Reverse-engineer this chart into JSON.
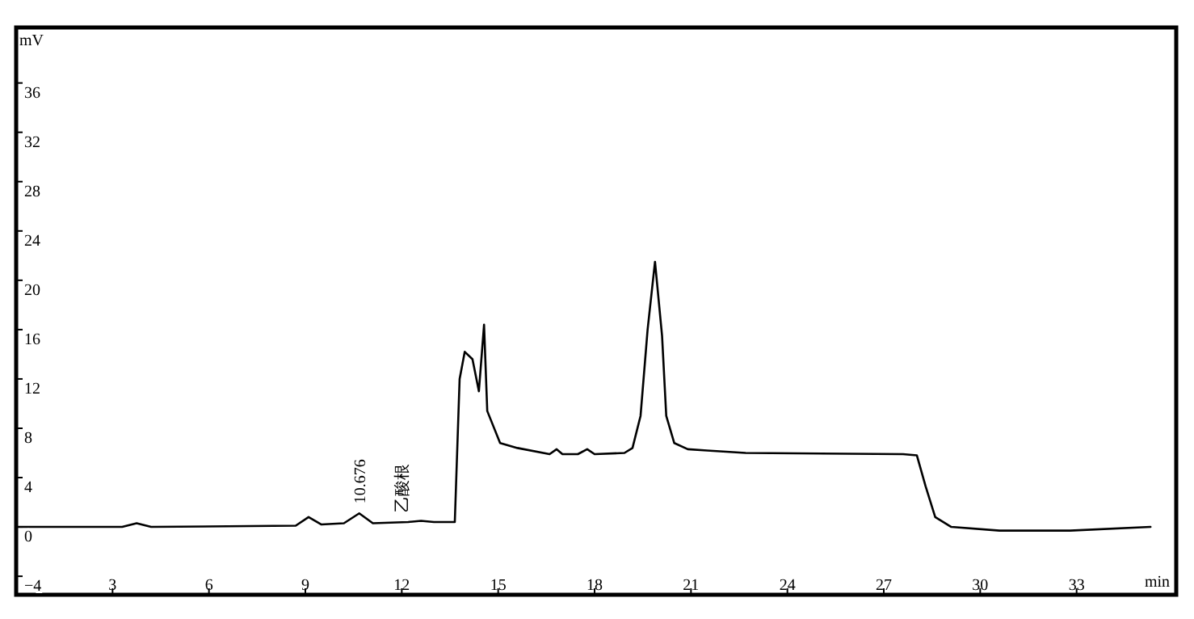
{
  "chart_data": {
    "type": "line",
    "xlabel": "min",
    "ylabel": "mV",
    "xlim": [
      0,
      36.1
    ],
    "ylim": [
      -5.5,
      40.5
    ],
    "xticks": [
      3,
      6,
      9,
      12,
      15,
      18,
      21,
      24,
      27,
      30,
      33
    ],
    "yticks": [
      -4,
      0,
      4,
      8,
      12,
      16,
      20,
      24,
      28,
      32,
      36
    ],
    "x": [
      0,
      3.3,
      3.75,
      4.2,
      8.7,
      9.1,
      9.5,
      10.2,
      10.676,
      11.1,
      12.2,
      12.6,
      13.0,
      13.65,
      13.8,
      13.96,
      14.2,
      14.4,
      14.56,
      14.66,
      15.06,
      15.6,
      16.6,
      16.82,
      17.0,
      17.48,
      17.77,
      18.0,
      18.93,
      19.18,
      19.43,
      19.65,
      19.88,
      20.1,
      20.23,
      20.48,
      20.9,
      21.5,
      22.7,
      27.6,
      28.03,
      28.3,
      28.6,
      29.1,
      30.6,
      32.8,
      35.3
    ],
    "series": [
      {
        "color": "#000000",
        "values": [
          0,
          0,
          0.3,
          0,
          0.1,
          0.8,
          0.2,
          0.3,
          1.1,
          0.3,
          0.4,
          0.5,
          0.4,
          0.4,
          12.0,
          14.2,
          13.6,
          11.0,
          16.4,
          9.4,
          6.8,
          6.4,
          5.9,
          6.3,
          5.9,
          5.9,
          6.3,
          5.9,
          6.0,
          6.4,
          9.0,
          16.0,
          21.5,
          15.5,
          9.0,
          6.8,
          6.3,
          6.2,
          6.0,
          5.9,
          5.8,
          3.3,
          0.8,
          0,
          -0.3,
          -0.3,
          0
        ]
      }
    ],
    "annotations": [
      {
        "text": "10.676",
        "x": 10.676,
        "y": 1.1
      },
      {
        "text": "乙酸根",
        "x": 12.0,
        "y": 0.4
      }
    ]
  }
}
